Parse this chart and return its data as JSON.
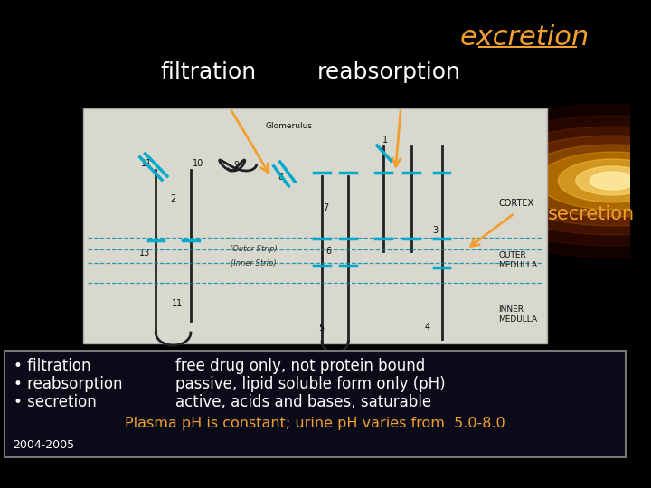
{
  "bg_color": "#000000",
  "title_excretion": "excretion",
  "title_filtration": "filtration",
  "title_reabsorption": "reabsorption",
  "title_secretion": "secretion",
  "text_color_white": "#ffffff",
  "text_color_orange": "#f0a030",
  "bullet_items_left": [
    "• filtration",
    "• reabsorption",
    "• secretion"
  ],
  "bullet_items_right": [
    "free drug only, not protein bound",
    "passive, lipid soluble form only (pH)",
    "active, acids and bases, saturable"
  ],
  "plasma_text": "Plasma pH is constant; urine pH varies from  5.0-8.0",
  "year_text": "2004-2005",
  "arrow_color": "#f0a030",
  "blue_mark_color": "#00aacc",
  "diagram_bg": "#d8d8cf",
  "line_color": "#222222",
  "dashed_line_color": "#0088aa",
  "cortex_label": "CORTEX",
  "outer_medulla_label": "OUTER\nMEDULLA",
  "inner_medulla_label": "INNER\nMEDULLA",
  "glomerulus_label": "Glomerulus",
  "outer_strip_label": "(Outer Strip)",
  "inner_strip_label": "(Inner Strip)"
}
